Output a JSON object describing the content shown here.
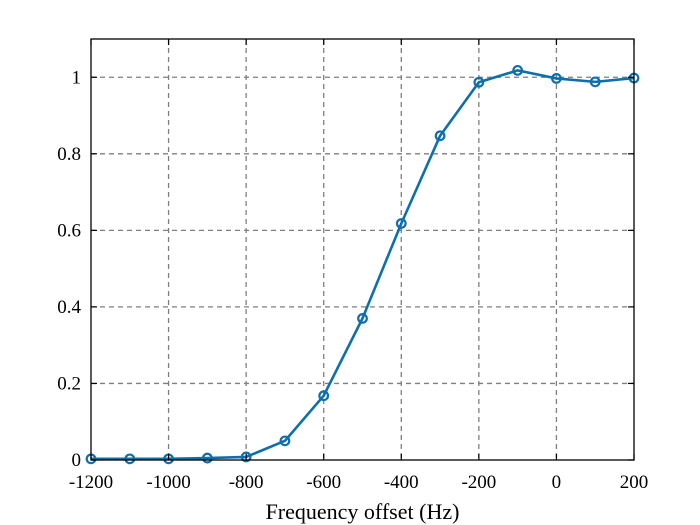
{
  "chart_data": {
    "type": "line",
    "title": "",
    "xlabel": "Frequency offset (Hz)",
    "ylabel": "",
    "xlim": [
      -1200,
      200
    ],
    "ylim": [
      0,
      1.1
    ],
    "grid": true,
    "x_ticks": [
      -1200,
      -1000,
      -800,
      -600,
      -400,
      -200,
      0,
      200
    ],
    "x_tick_labels": [
      "-1200",
      "-1000",
      "-800",
      "-600",
      "-400",
      "-200",
      "0",
      "200"
    ],
    "y_ticks": [
      0,
      0.2,
      0.4,
      0.6,
      0.8,
      1
    ],
    "y_tick_labels": [
      "0",
      "0.2",
      "0.4",
      "0.6",
      "0.8",
      "1"
    ],
    "series": [
      {
        "color": "#0e6fad",
        "marker": "circle",
        "x": [
          -1200,
          -1100,
          -1000,
          -900,
          -800,
          -700,
          -600,
          -500,
          -400,
          -300,
          -200,
          -100,
          0,
          100,
          200
        ],
        "y": [
          0.003,
          0.003,
          0.003,
          0.005,
          0.008,
          0.05,
          0.168,
          0.37,
          0.618,
          0.847,
          0.987,
          1.018,
          0.997,
          0.988,
          0.998
        ]
      }
    ]
  }
}
